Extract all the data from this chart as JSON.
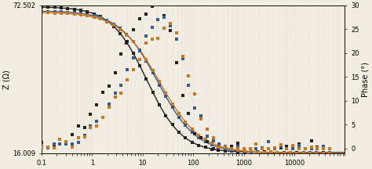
{
  "ylabel_left": "Z (Ω)",
  "ylabel_right": "Phase (°)",
  "xlim_log": [
    0.1,
    100000
  ],
  "ylim_left": [
    16.009,
    72.502
  ],
  "ylim_right": [
    -1,
    30
  ],
  "yticks_left": [
    16.009,
    72.502
  ],
  "yticks_right": [
    0,
    5,
    10,
    15,
    20,
    25,
    30
  ],
  "xticks": [
    0.1,
    1,
    10,
    100,
    1000,
    10000
  ],
  "xtick_labels": [
    "0.1",
    "1",
    "10",
    "100",
    "1000",
    "10000"
  ],
  "bg_color": "#f2ede3",
  "grid_color": "#c8c8c8",
  "line_black": "#222222",
  "line_blue": "#3a5a8a",
  "line_orange": "#c87820",
  "marker_size": 3.5
}
